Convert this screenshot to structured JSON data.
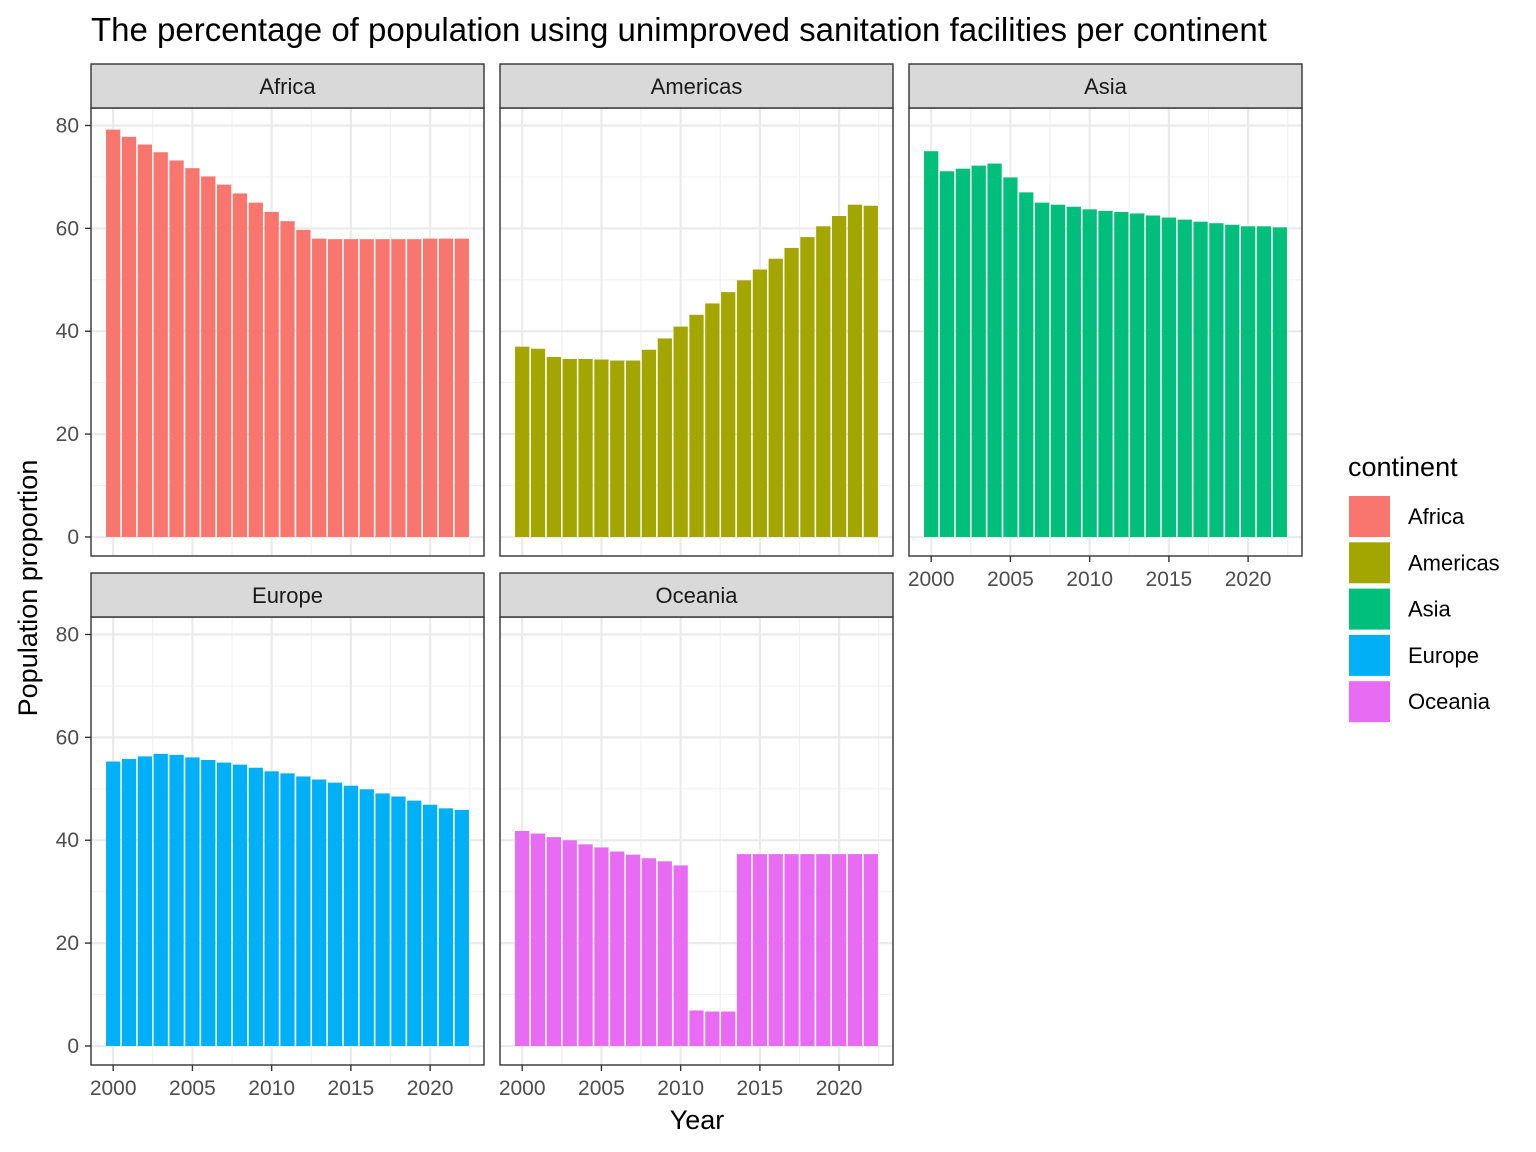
{
  "chart_data": {
    "type": "bar",
    "title": "The percentage of population using unimproved sanitation facilities per continent",
    "xlabel": "Year",
    "ylabel": "Population proportion",
    "ylim": [
      0,
      85
    ],
    "y_ticks": [
      0,
      20,
      40,
      60,
      80
    ],
    "x_ticks": [
      2000,
      2005,
      2010,
      2015,
      2020
    ],
    "grid": true,
    "legend": {
      "title": "continent",
      "position": "right"
    },
    "x": [
      2000,
      2001,
      2002,
      2003,
      2004,
      2005,
      2006,
      2007,
      2008,
      2009,
      2010,
      2011,
      2012,
      2013,
      2014,
      2015,
      2016,
      2017,
      2018,
      2019,
      2020,
      2021,
      2022
    ],
    "series": [
      {
        "name": "Africa",
        "color": "#F8766D",
        "values": [
          79.2,
          77.8,
          76.3,
          74.8,
          73.2,
          71.7,
          70.1,
          68.5,
          66.8,
          65.0,
          63.2,
          61.4,
          59.7,
          58.0,
          57.9,
          57.9,
          57.9,
          57.9,
          57.9,
          57.9,
          58.0,
          58.0,
          58.0
        ]
      },
      {
        "name": "Americas",
        "color": "#A3A500",
        "values": [
          37.0,
          36.6,
          35.0,
          34.6,
          34.6,
          34.5,
          34.3,
          34.3,
          36.4,
          38.6,
          40.9,
          43.2,
          45.4,
          47.6,
          49.9,
          52.0,
          54.1,
          56.2,
          58.3,
          60.4,
          62.4,
          64.6,
          64.4
        ]
      },
      {
        "name": "Asia",
        "color": "#00BF7D",
        "values": [
          75.0,
          71.1,
          71.6,
          72.2,
          72.6,
          69.9,
          67.0,
          65.0,
          64.6,
          64.2,
          63.7,
          63.4,
          63.2,
          62.9,
          62.5,
          62.1,
          61.7,
          61.3,
          61.0,
          60.7,
          60.4,
          60.4,
          60.2
        ]
      },
      {
        "name": "Europe",
        "color": "#00B0F6",
        "values": [
          55.3,
          55.8,
          56.3,
          56.8,
          56.6,
          56.1,
          55.6,
          55.1,
          54.7,
          54.1,
          53.4,
          53.0,
          52.4,
          51.8,
          51.2,
          50.6,
          49.9,
          49.1,
          48.5,
          47.7,
          46.9,
          46.2,
          45.9
        ]
      },
      {
        "name": "Oceania",
        "color": "#E76BF3",
        "values": [
          41.8,
          41.3,
          40.6,
          40.0,
          39.2,
          38.6,
          37.8,
          37.2,
          36.5,
          35.9,
          35.1,
          6.9,
          6.7,
          6.7,
          37.3,
          37.3,
          37.3,
          37.3,
          37.3,
          37.3,
          37.3,
          37.3,
          37.3
        ]
      }
    ]
  }
}
